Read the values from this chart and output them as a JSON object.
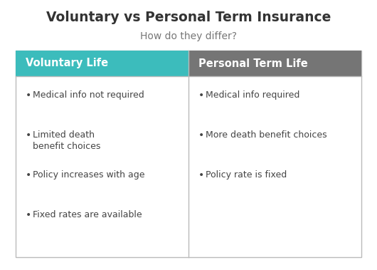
{
  "title": "Voluntary vs Personal Term Insurance",
  "subtitle": "How do they differ?",
  "title_fontsize": 13.5,
  "subtitle_fontsize": 10,
  "col1_header": "Voluntary Life",
  "col2_header": "Personal Term Life",
  "col1_header_color": "#3cbcbc",
  "col2_header_color": "#757575",
  "header_text_color": "#ffffff",
  "header_fontsize": 10.5,
  "body_bg_color": "#ffffff",
  "border_color": "#bbbbbb",
  "col1_items": [
    "Medical info not required",
    "Limited death\nbenefit choices",
    "Policy increases with age",
    "Fixed rates are available"
  ],
  "col2_items": [
    "Medical info required",
    "More death benefit choices",
    "Policy rate is fixed"
  ],
  "item_fontsize": 9,
  "item_text_color": "#444444",
  "title_color": "#333333",
  "subtitle_color": "#777777",
  "bullet": "•"
}
